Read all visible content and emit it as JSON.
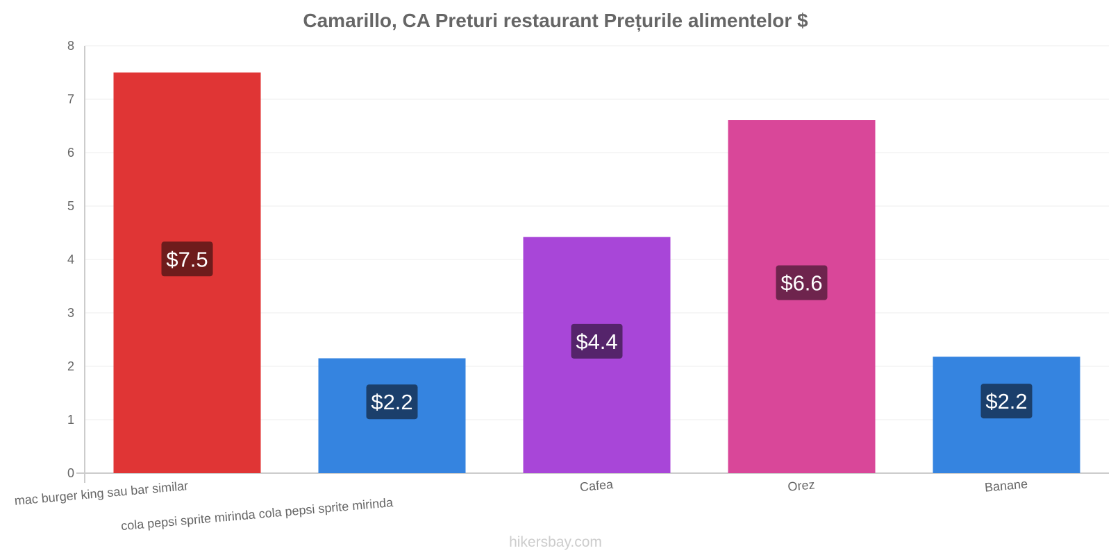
{
  "chart_data": {
    "type": "bar",
    "title": "Camarillo, CA Preturi restaurant Prețurile alimentelor $",
    "categories": [
      "mac burger king sau bar similar",
      "cola pepsi sprite mirinda cola pepsi sprite mirinda",
      "Cafea",
      "Orez",
      "Banane"
    ],
    "values": [
      7.5,
      2.15,
      4.42,
      6.61,
      2.18
    ],
    "value_labels": [
      "$7.5",
      "$2.2",
      "$4.4",
      "$6.6",
      "$2.2"
    ],
    "bar_colors": [
      "#e03535",
      "#3584e0",
      "#a846d8",
      "#d94799",
      "#3584e0"
    ],
    "label_bg_colors": [
      "#6e1c1c",
      "#1b3f6b",
      "#55246b",
      "#6e244d",
      "#1b3f6b"
    ],
    "ylim": [
      0,
      8
    ],
    "yticks": [
      0,
      1,
      2,
      3,
      4,
      5,
      6,
      7,
      8
    ],
    "xlabel": "",
    "ylabel": "",
    "grid": true
  },
  "watermark": "hikersbay.com"
}
